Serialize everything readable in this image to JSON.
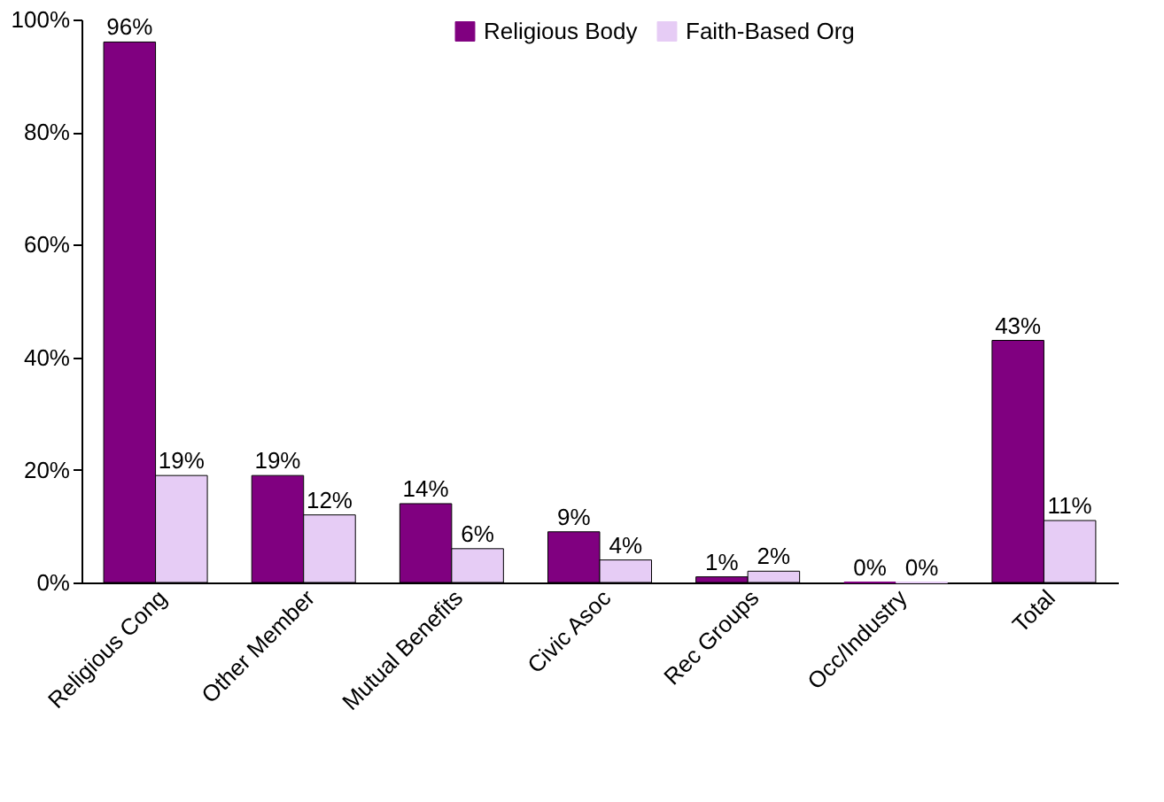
{
  "chart_data": {
    "type": "bar",
    "categories": [
      "Religious Cong",
      "Other Member",
      "Mutual Benefits",
      "Civic Asoc",
      "Rec Groups",
      "Occ/Industry",
      "Total"
    ],
    "series": [
      {
        "name": "Religious Body",
        "color": "#800080",
        "values": [
          96,
          19,
          14,
          9,
          1,
          0,
          43
        ],
        "value_labels": [
          "96%",
          "19%",
          "14%",
          "9%",
          "1%",
          "0%",
          "43%"
        ]
      },
      {
        "name": "Faith-Based Org",
        "color": "#e6ccf5",
        "values": [
          19,
          12,
          6,
          4,
          2,
          0,
          11
        ],
        "value_labels": [
          "19%",
          "12%",
          "6%",
          "4%",
          "2%",
          "0%",
          "11%"
        ]
      }
    ],
    "ylim": [
      0,
      100
    ],
    "yticks": [
      {
        "value": 0,
        "label": "0%"
      },
      {
        "value": 20,
        "label": "20%"
      },
      {
        "value": 40,
        "label": "40%"
      },
      {
        "value": 60,
        "label": "60%"
      },
      {
        "value": 80,
        "label": "80%"
      },
      {
        "value": 100,
        "label": "100%"
      }
    ],
    "grid": false,
    "legend": "top right"
  }
}
